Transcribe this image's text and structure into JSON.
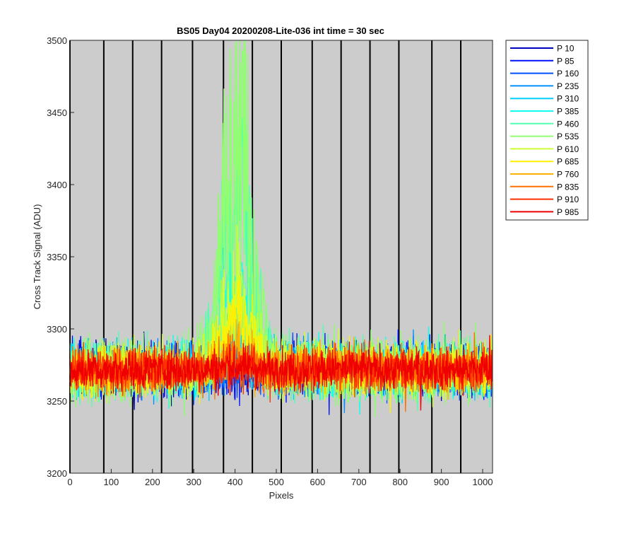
{
  "chart_data": {
    "type": "line",
    "title": "BS05 Day04 20200208-Lite-036 int time = 30 sec",
    "xlabel": "Pixels",
    "ylabel": "Cross Track Signal (ADU)",
    "xlim": [
      0,
      1024
    ],
    "ylim": [
      3200,
      3500
    ],
    "xticks": [
      0,
      100,
      200,
      300,
      400,
      500,
      600,
      700,
      800,
      900,
      1000
    ],
    "yticks": [
      3200,
      3250,
      3300,
      3350,
      3400,
      3450,
      3500
    ],
    "plot_background": "#cccccc",
    "vertical_lines_x": [
      0,
      82,
      152,
      222,
      297,
      372,
      442,
      512,
      587,
      657,
      727,
      797,
      877,
      947
    ],
    "grid": false,
    "legend_position": "outside-right",
    "n_points": 1024,
    "baseline": 3272,
    "series": [
      {
        "name": "P 10",
        "color": "#0000bf",
        "peak": 0,
        "noise": 9
      },
      {
        "name": "P 85",
        "color": "#0010ff",
        "peak": 0,
        "noise": 9
      },
      {
        "name": "P 160",
        "color": "#0050ff",
        "peak": 2,
        "noise": 9
      },
      {
        "name": "P 235",
        "color": "#0090ff",
        "peak": 8,
        "noise": 9
      },
      {
        "name": "P 310",
        "color": "#00cfff",
        "peak": 25,
        "noise": 9
      },
      {
        "name": "P 385",
        "color": "#10ffef",
        "peak": 60,
        "noise": 10
      },
      {
        "name": "P 460",
        "color": "#50ffaf",
        "peak": 120,
        "noise": 11
      },
      {
        "name": "P 535",
        "color": "#8fff70",
        "peak": 175,
        "noise": 12
      },
      {
        "name": "P 610",
        "color": "#cfff30",
        "peak": 50,
        "noise": 10
      },
      {
        "name": "P 685",
        "color": "#ffef00",
        "peak": 35,
        "noise": 9
      },
      {
        "name": "P 760",
        "color": "#ffb000",
        "peak": 12,
        "noise": 8
      },
      {
        "name": "P 835",
        "color": "#ff7000",
        "peak": 6,
        "noise": 8
      },
      {
        "name": "P 910",
        "color": "#ff3000",
        "peak": 3,
        "noise": 7
      },
      {
        "name": "P 985",
        "color": "#ef0000",
        "peak": 2,
        "noise": 7
      }
    ]
  }
}
